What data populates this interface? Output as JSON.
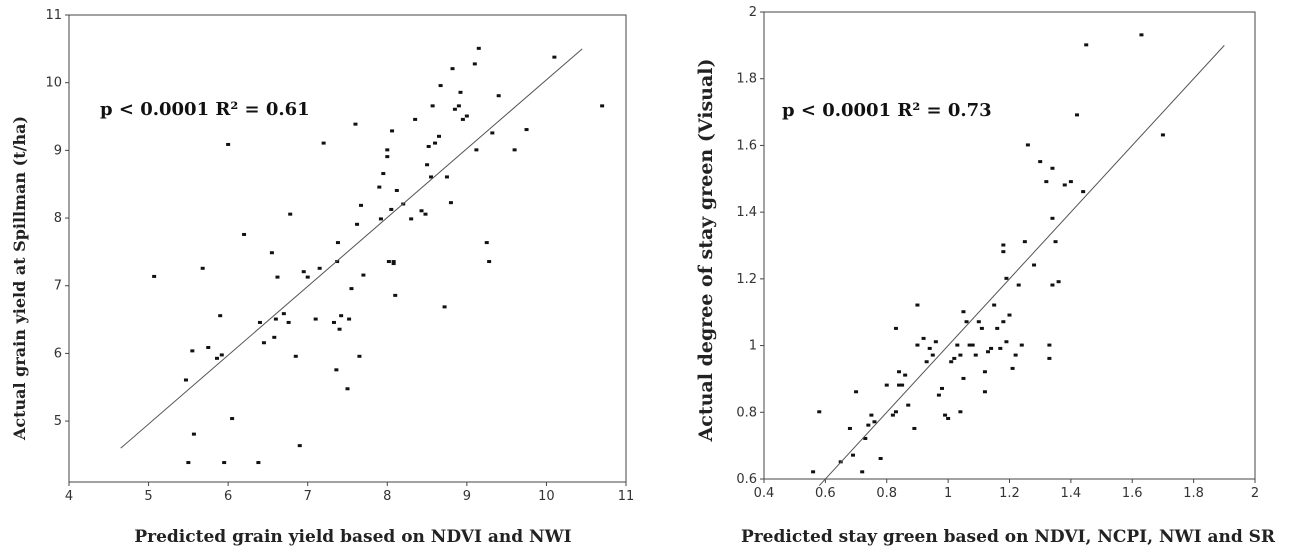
{
  "chart_data": [
    {
      "type": "scatter",
      "title": "",
      "xlabel": "Predicted grain yield based on NDVI and NWI",
      "ylabel": "Actual grain yield at Spillman (t/ha)",
      "annotation": "p < 0.0001 R² = 0.61",
      "xlim": [
        4,
        11
      ],
      "ylim": [
        4.1,
        11
      ],
      "xticks": [
        "4",
        "5",
        "6",
        "7",
        "8",
        "9",
        "10",
        "11"
      ],
      "yticks": [
        "5",
        "6",
        "7",
        "8",
        "9",
        "10",
        "11"
      ],
      "fit_line": {
        "x": [
          4.65,
          10.45
        ],
        "y": [
          4.6,
          10.5
        ]
      },
      "points": [
        [
          5.07,
          7.13
        ],
        [
          5.47,
          5.6
        ],
        [
          5.5,
          4.38
        ],
        [
          5.55,
          6.03
        ],
        [
          5.57,
          4.8
        ],
        [
          5.68,
          7.25
        ],
        [
          5.75,
          6.08
        ],
        [
          5.86,
          5.92
        ],
        [
          5.9,
          6.55
        ],
        [
          5.92,
          5.97
        ],
        [
          5.95,
          4.38
        ],
        [
          6.0,
          9.08
        ],
        [
          6.05,
          5.03
        ],
        [
          6.2,
          7.75
        ],
        [
          6.38,
          4.38
        ],
        [
          6.4,
          6.45
        ],
        [
          6.45,
          6.15
        ],
        [
          6.55,
          7.48
        ],
        [
          6.58,
          6.23
        ],
        [
          6.6,
          6.5
        ],
        [
          6.62,
          7.12
        ],
        [
          6.7,
          6.58
        ],
        [
          6.76,
          6.45
        ],
        [
          6.78,
          8.05
        ],
        [
          6.85,
          5.95
        ],
        [
          6.9,
          4.63
        ],
        [
          6.95,
          7.2
        ],
        [
          7.0,
          7.12
        ],
        [
          7.1,
          6.5
        ],
        [
          7.15,
          7.25
        ],
        [
          7.2,
          9.1
        ],
        [
          7.33,
          6.45
        ],
        [
          7.36,
          5.75
        ],
        [
          7.37,
          7.35
        ],
        [
          7.38,
          7.63
        ],
        [
          7.4,
          6.35
        ],
        [
          7.42,
          6.55
        ],
        [
          7.5,
          5.47
        ],
        [
          7.52,
          6.5
        ],
        [
          7.55,
          6.95
        ],
        [
          7.6,
          9.38
        ],
        [
          7.62,
          7.9
        ],
        [
          7.65,
          5.95
        ],
        [
          7.67,
          8.18
        ],
        [
          7.7,
          7.15
        ],
        [
          7.9,
          8.45
        ],
        [
          7.92,
          7.98
        ],
        [
          7.95,
          8.65
        ],
        [
          8.0,
          9.0
        ],
        [
          8.0,
          8.9
        ],
        [
          8.02,
          7.35
        ],
        [
          8.05,
          8.12
        ],
        [
          8.06,
          9.28
        ],
        [
          8.08,
          7.35
        ],
        [
          8.08,
          7.32
        ],
        [
          8.1,
          6.85
        ],
        [
          8.12,
          8.4
        ],
        [
          8.2,
          8.2
        ],
        [
          8.3,
          7.98
        ],
        [
          8.35,
          9.45
        ],
        [
          8.43,
          8.1
        ],
        [
          8.48,
          8.05
        ],
        [
          8.5,
          8.78
        ],
        [
          8.52,
          9.05
        ],
        [
          8.55,
          8.6
        ],
        [
          8.57,
          9.65
        ],
        [
          8.6,
          9.1
        ],
        [
          8.65,
          9.2
        ],
        [
          8.67,
          9.95
        ],
        [
          8.72,
          6.68
        ],
        [
          8.75,
          8.6
        ],
        [
          8.8,
          8.22
        ],
        [
          8.82,
          10.2
        ],
        [
          8.85,
          9.6
        ],
        [
          8.9,
          9.65
        ],
        [
          8.92,
          9.85
        ],
        [
          8.95,
          9.45
        ],
        [
          9.0,
          9.5
        ],
        [
          9.1,
          10.27
        ],
        [
          9.12,
          9.0
        ],
        [
          9.15,
          10.5
        ],
        [
          9.25,
          7.63
        ],
        [
          9.28,
          7.35
        ],
        [
          9.32,
          9.25
        ],
        [
          9.4,
          9.8
        ],
        [
          9.6,
          9.0
        ],
        [
          9.75,
          9.3
        ],
        [
          10.1,
          10.37
        ],
        [
          10.7,
          9.65
        ]
      ]
    },
    {
      "type": "scatter",
      "title": "",
      "xlabel": "Predicted stay green based on NDVI, NCPI, NWI and SR",
      "ylabel": "Actual degree of stay green (Visual)",
      "annotation": "p < 0.0001 R² = 0.73",
      "xlim": [
        0.4,
        2
      ],
      "ylim": [
        0.6,
        2
      ],
      "xticks": [
        "0.4",
        "0.6",
        "0.8",
        "1",
        "1.2",
        "1.4",
        "1.6",
        "1.8",
        "2"
      ],
      "yticks": [
        "0.6",
        "0.8",
        "1",
        "1.2",
        "1.4",
        "1.6",
        "1.8",
        "2"
      ],
      "fit_line": {
        "x": [
          0.58,
          1.9
        ],
        "y": [
          0.58,
          1.9
        ]
      },
      "points": [
        [
          0.56,
          0.62
        ],
        [
          0.58,
          0.8
        ],
        [
          0.65,
          0.65
        ],
        [
          0.68,
          0.75
        ],
        [
          0.69,
          0.67
        ],
        [
          0.7,
          0.86
        ],
        [
          0.72,
          0.62
        ],
        [
          0.73,
          0.72
        ],
        [
          0.74,
          0.76
        ],
        [
          0.75,
          0.79
        ],
        [
          0.76,
          0.77
        ],
        [
          0.78,
          0.66
        ],
        [
          0.8,
          0.88
        ],
        [
          0.82,
          0.79
        ],
        [
          0.83,
          1.05
        ],
        [
          0.83,
          0.8
        ],
        [
          0.84,
          0.92
        ],
        [
          0.84,
          0.88
        ],
        [
          0.85,
          0.88
        ],
        [
          0.86,
          0.91
        ],
        [
          0.87,
          0.82
        ],
        [
          0.89,
          0.75
        ],
        [
          0.9,
          1.12
        ],
        [
          0.9,
          1.0
        ],
        [
          0.92,
          1.02
        ],
        [
          0.93,
          0.95
        ],
        [
          0.94,
          0.99
        ],
        [
          0.95,
          0.97
        ],
        [
          0.96,
          1.01
        ],
        [
          0.97,
          0.85
        ],
        [
          0.98,
          0.87
        ],
        [
          0.99,
          0.79
        ],
        [
          1.0,
          0.78
        ],
        [
          1.01,
          0.95
        ],
        [
          1.02,
          0.96
        ],
        [
          1.03,
          1.0
        ],
        [
          1.04,
          0.97
        ],
        [
          1.04,
          0.8
        ],
        [
          1.05,
          1.1
        ],
        [
          1.05,
          0.9
        ],
        [
          1.06,
          1.07
        ],
        [
          1.07,
          1.0
        ],
        [
          1.08,
          1.0
        ],
        [
          1.09,
          0.97
        ],
        [
          1.1,
          1.07
        ],
        [
          1.11,
          1.05
        ],
        [
          1.12,
          0.92
        ],
        [
          1.12,
          0.86
        ],
        [
          1.13,
          0.98
        ],
        [
          1.14,
          0.99
        ],
        [
          1.15,
          1.12
        ],
        [
          1.16,
          1.05
        ],
        [
          1.17,
          0.99
        ],
        [
          1.18,
          1.3
        ],
        [
          1.18,
          1.28
        ],
        [
          1.18,
          1.07
        ],
        [
          1.19,
          1.2
        ],
        [
          1.19,
          1.01
        ],
        [
          1.2,
          1.09
        ],
        [
          1.21,
          0.93
        ],
        [
          1.22,
          0.97
        ],
        [
          1.23,
          1.18
        ],
        [
          1.24,
          1.0
        ],
        [
          1.25,
          1.31
        ],
        [
          1.26,
          1.6
        ],
        [
          1.28,
          1.24
        ],
        [
          1.3,
          1.55
        ],
        [
          1.32,
          1.49
        ],
        [
          1.33,
          1.0
        ],
        [
          1.33,
          0.96
        ],
        [
          1.34,
          1.53
        ],
        [
          1.34,
          1.38
        ],
        [
          1.34,
          1.18
        ],
        [
          1.35,
          1.31
        ],
        [
          1.36,
          1.19
        ],
        [
          1.38,
          1.48
        ],
        [
          1.4,
          1.49
        ],
        [
          1.42,
          1.69
        ],
        [
          1.44,
          1.46
        ],
        [
          1.45,
          1.9
        ],
        [
          1.63,
          1.93
        ],
        [
          1.7,
          1.63
        ]
      ]
    }
  ]
}
